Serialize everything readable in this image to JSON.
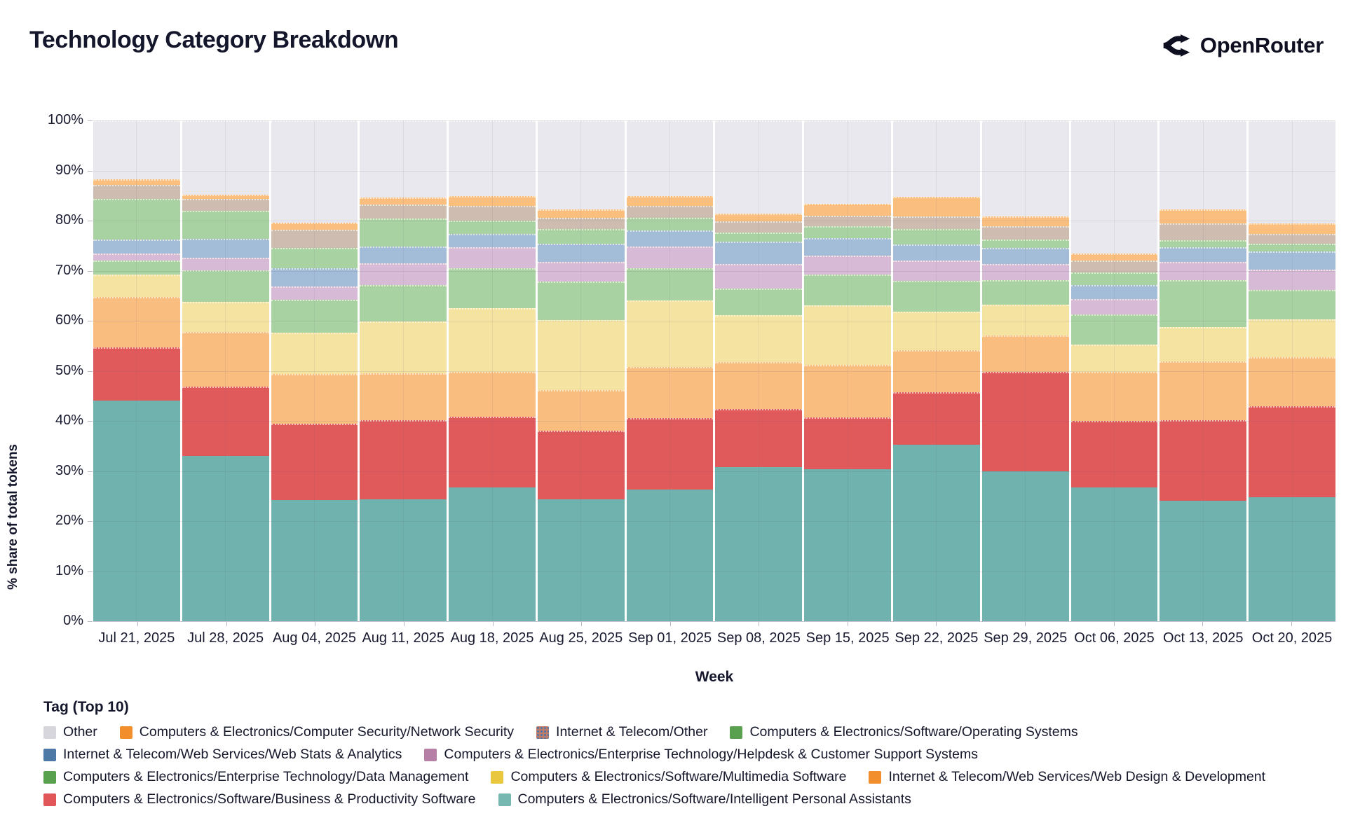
{
  "header": {
    "title": "Technology Category Breakdown",
    "brand": "OpenRouter"
  },
  "chart_data": {
    "type": "bar",
    "stacked": true,
    "title": "Technology Category Breakdown",
    "xlabel": "Week",
    "ylabel": "% share of total tokens",
    "ylim": [
      0,
      100
    ],
    "grid": true,
    "legend_position": "bottom",
    "yticks": [
      "0%",
      "10%",
      "20%",
      "30%",
      "40%",
      "50%",
      "60%",
      "70%",
      "80%",
      "90%",
      "100%"
    ],
    "categories": [
      "Jul 21, 2025",
      "Jul 28, 2025",
      "Aug 04, 2025",
      "Aug 11, 2025",
      "Aug 18, 2025",
      "Aug 25, 2025",
      "Sep 01, 2025",
      "Sep 08, 2025",
      "Sep 15, 2025",
      "Sep 22, 2025",
      "Sep 29, 2025",
      "Oct 06, 2025",
      "Oct 13, 2025",
      "Oct 20, 2025"
    ],
    "series": [
      {
        "name": "Computers & Electronics/Software/Intelligent Personal Assistants",
        "color": "#6FB2AE",
        "pattern": "none",
        "values": [
          44.0,
          33.0,
          24.2,
          24.3,
          26.7,
          24.4,
          26.3,
          30.8,
          30.4,
          35.2,
          30.0,
          26.7,
          24.0,
          24.8
        ]
      },
      {
        "name": "Computers & Electronics/Software/Business & Productivity Software",
        "color": "#E05A5C",
        "pattern": "none",
        "values": [
          10.7,
          13.8,
          15.2,
          15.9,
          14.1,
          13.7,
          14.3,
          11.6,
          10.3,
          10.6,
          19.8,
          13.3,
          16.2,
          18.1
        ]
      },
      {
        "name": "Internet & Telecom/Web Services/Web Design & Development",
        "color": "#F9BD80",
        "pattern": "none",
        "values": [
          10.1,
          10.9,
          10.0,
          9.3,
          9.0,
          8.0,
          10.2,
          9.4,
          10.5,
          8.3,
          7.2,
          9.8,
          11.7,
          9.8
        ]
      },
      {
        "name": "Computers & Electronics/Software/Multimedia Software",
        "color": "#F4E3A1",
        "pattern": "none",
        "values": [
          4.5,
          6.1,
          8.2,
          10.4,
          12.7,
          14.0,
          13.3,
          9.3,
          11.9,
          7.7,
          6.2,
          5.4,
          6.9,
          7.6
        ]
      },
      {
        "name": "Computers & Electronics/Enterprise Technology/Data Management",
        "color": "#A9D2A2",
        "pattern": "none",
        "values": [
          2.8,
          6.3,
          6.6,
          7.2,
          8.0,
          7.7,
          6.4,
          5.4,
          6.1,
          6.2,
          4.9,
          6.0,
          9.3,
          5.8
        ]
      },
      {
        "name": "Computers & Electronics/Enterprise Technology/Helpdesk & Customer Support Systems",
        "color": "#D7BBD6",
        "pattern": "dots-cream",
        "values": [
          1.4,
          2.5,
          2.6,
          4.4,
          4.2,
          4.0,
          4.4,
          4.9,
          3.8,
          4.0,
          3.3,
          3.1,
          3.7,
          4.1
        ]
      },
      {
        "name": "Internet & Telecom/Web Services/Web Stats & Analytics",
        "color": "#A3BCD8",
        "pattern": "none",
        "values": [
          2.8,
          3.8,
          3.7,
          3.4,
          2.7,
          3.6,
          3.2,
          4.4,
          3.5,
          3.2,
          3.1,
          2.8,
          2.9,
          3.6
        ]
      },
      {
        "name": "Computers & Electronics/Software/Operating Systems",
        "color": "#A9D2A2",
        "pattern": "none",
        "values": [
          8.1,
          5.6,
          4.1,
          5.6,
          2.6,
          2.9,
          2.4,
          1.8,
          2.4,
          3.1,
          1.8,
          2.5,
          1.4,
          1.6
        ]
      },
      {
        "name": "Internet & Telecom/Other",
        "color": "#CFBCB0",
        "pattern": "dots-faint",
        "values": [
          2.8,
          2.3,
          3.6,
          2.7,
          2.9,
          2.2,
          2.4,
          2.2,
          2.1,
          2.6,
          2.6,
          2.4,
          3.3,
          2.0
        ]
      },
      {
        "name": "Computers & Electronics/Computer Security/Network Security",
        "color": "#FABE7E",
        "pattern": "none",
        "values": [
          1.0,
          0.9,
          1.4,
          1.4,
          2.0,
          1.8,
          2.0,
          1.6,
          2.4,
          3.8,
          2.0,
          1.4,
          2.9,
          2.0
        ]
      },
      {
        "name": "Other",
        "color": "#E8E8EE",
        "pattern": "none",
        "values": [
          11.8,
          14.8,
          20.4,
          15.4,
          15.1,
          17.7,
          15.1,
          18.6,
          16.6,
          15.3,
          19.1,
          26.6,
          17.7,
          20.6
        ]
      }
    ]
  },
  "legend": {
    "title": "Tag (Top 10)",
    "rows": [
      [
        {
          "label": "Other",
          "color": "#D6D6DC",
          "pattern": "none"
        },
        {
          "label": "Computers & Electronics/Computer Security/Network Security",
          "color": "#F28E2C",
          "pattern": "none"
        },
        {
          "label": "Internet & Telecom/Other",
          "color": "#BD7C6A",
          "pattern": "dots-blue"
        },
        {
          "label": "Computers & Electronics/Software/Operating Systems",
          "color": "#59A14F",
          "pattern": "none"
        }
      ],
      [
        {
          "label": "Internet & Telecom/Web Services/Web Stats & Analytics",
          "color": "#4E79A7",
          "pattern": "none"
        },
        {
          "label": "Computers & Electronics/Enterprise Technology/Helpdesk & Customer Support Systems",
          "color": "#B67FA6",
          "pattern": "none"
        }
      ],
      [
        {
          "label": "Computers & Electronics/Enterprise Technology/Data Management",
          "color": "#59A14F",
          "pattern": "none"
        },
        {
          "label": "Computers & Electronics/Software/Multimedia Software",
          "color": "#E9C73F",
          "pattern": "none"
        },
        {
          "label": "Internet & Telecom/Web Services/Web Design & Development",
          "color": "#F28E2C",
          "pattern": "none"
        }
      ],
      [
        {
          "label": "Computers & Electronics/Software/Business & Productivity Software",
          "color": "#E15759",
          "pattern": "none"
        },
        {
          "label": "Computers & Electronics/Software/Intelligent Personal Assistants",
          "color": "#76B7B2",
          "pattern": "none"
        }
      ]
    ]
  }
}
